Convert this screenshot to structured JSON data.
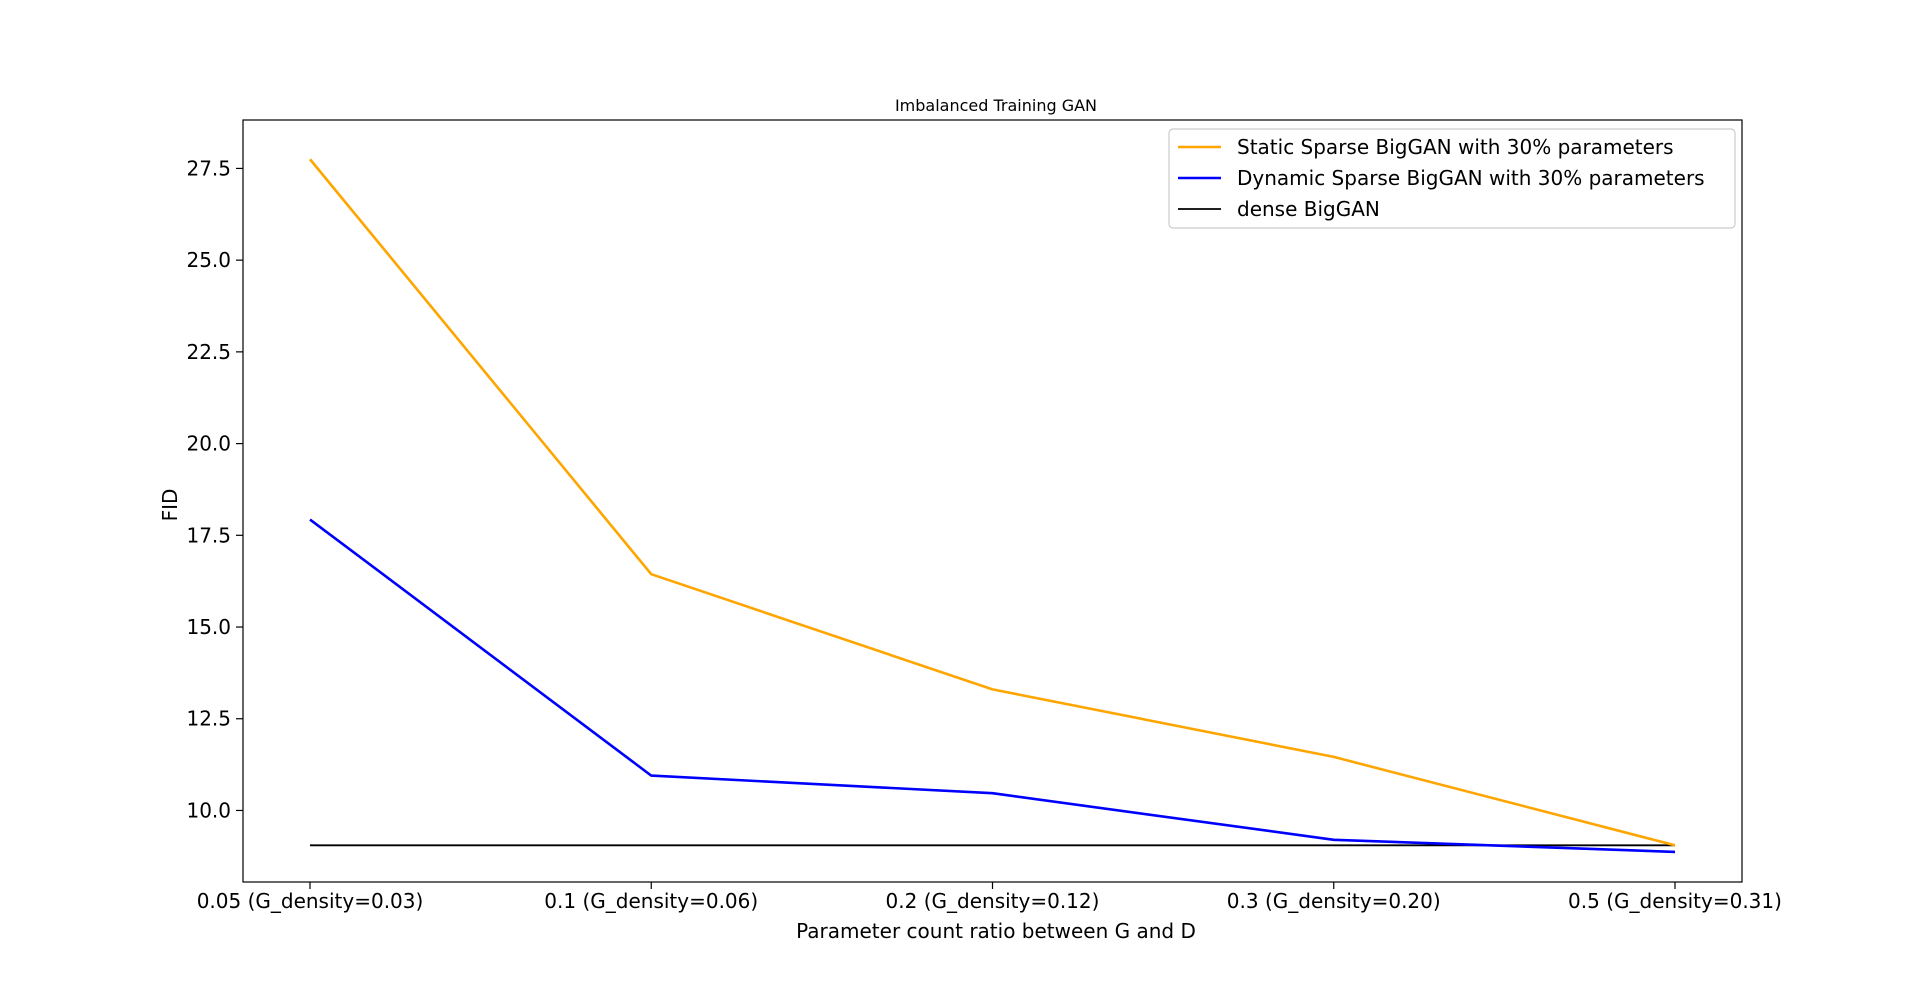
{
  "chart_data": {
    "type": "line",
    "title": "Imbalanced Training GAN",
    "xlabel": "Parameter count ratio between G and D",
    "ylabel": "FID",
    "categories": [
      "0.05 (G_density=0.03)",
      "0.1 (G_density=0.06)",
      "0.2 (G_density=0.12)",
      "0.3 (G_density=0.20)",
      "0.5 (G_density=0.31)"
    ],
    "ylim": [
      8.05,
      28.82
    ],
    "yticks": [
      10.0,
      12.5,
      15.0,
      17.5,
      20.0,
      22.5,
      25.0,
      27.5
    ],
    "ytick_labels": [
      "10.0",
      "12.5",
      "15.0",
      "17.5",
      "20.0",
      "22.5",
      "25.0",
      "27.5"
    ],
    "grid": false,
    "legend_position": "top-right",
    "series": [
      {
        "name": "Static Sparse BigGAN with 30% parameters",
        "color": "#ffa500",
        "values": [
          27.75,
          16.44,
          13.3,
          11.46,
          9.05
        ]
      },
      {
        "name": "Dynamic Sparse BigGAN with 30% parameters",
        "color": "#0000ff",
        "values": [
          17.93,
          10.95,
          10.47,
          9.2,
          8.87
        ]
      },
      {
        "name": "dense BigGAN",
        "color": "#000000",
        "values": [
          9.05,
          9.05,
          9.05,
          9.05,
          9.05
        ]
      }
    ]
  }
}
